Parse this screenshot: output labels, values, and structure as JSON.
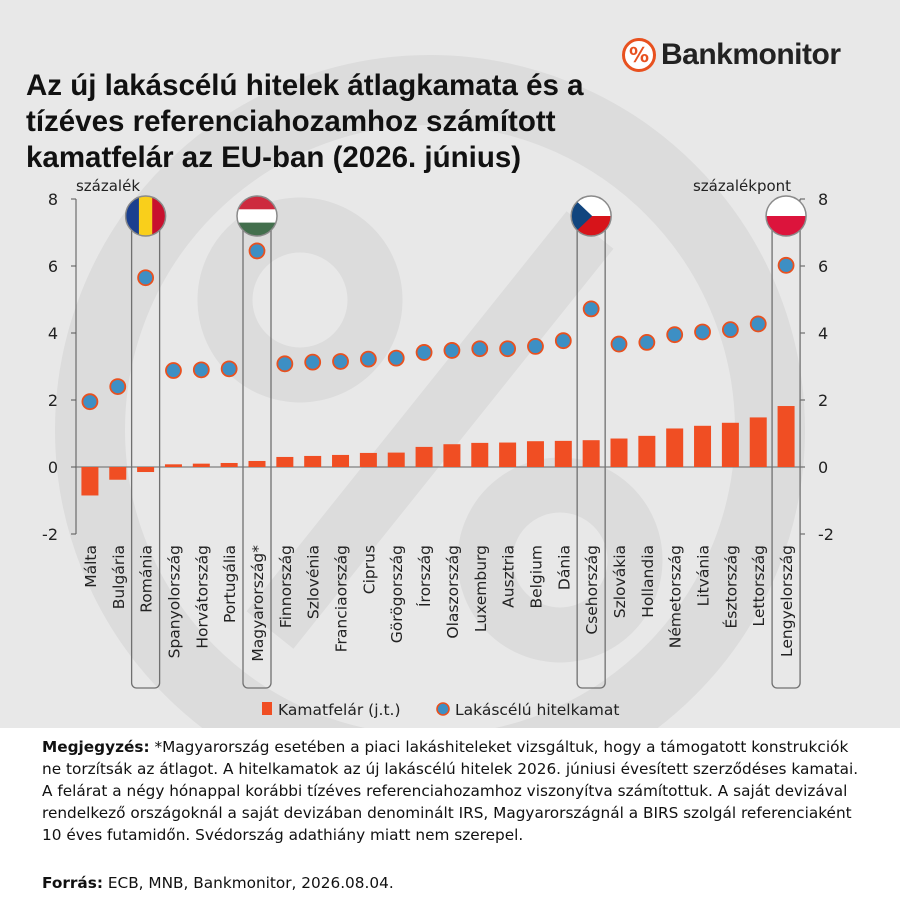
{
  "brand": {
    "symbol": "%",
    "name": "Bankmonitor"
  },
  "title_lines": [
    "Az új lakáscélú hitelek átlagkamata és a",
    "tízéves referenciahozamhoz számított",
    "kamatfelár az EU-ban (2026. június)"
  ],
  "colors": {
    "bar": "#f04e23",
    "dot": "#3d8fc4",
    "dot_border": "#e8511f",
    "background": "#e8e8e8"
  },
  "chart_data": {
    "type": "bar",
    "categories": [
      "Málta",
      "Bulgária",
      "Románia",
      "Spanyolország",
      "Horvátország",
      "Portugália",
      "Magyarország*",
      "Finnország",
      "Szlovénia",
      "Franciaország",
      "Ciprus",
      "Görögország",
      "Írország",
      "Olaszország",
      "Luxemburg",
      "Ausztria",
      "Belgium",
      "Dánia",
      "Csehország",
      "Szlovákia",
      "Hollandia",
      "Németország",
      "Litvánia",
      "Észtország",
      "Lettország",
      "Lengyelország"
    ],
    "series": [
      {
        "name": "Kamatfelár (j.t.)",
        "type": "bar",
        "axis": "right",
        "values": [
          -0.85,
          -0.38,
          -0.15,
          0.08,
          0.1,
          0.12,
          0.18,
          0.3,
          0.33,
          0.36,
          0.42,
          0.43,
          0.6,
          0.68,
          0.72,
          0.73,
          0.77,
          0.78,
          0.8,
          0.85,
          0.93,
          1.15,
          1.23,
          1.32,
          1.48,
          1.82
        ]
      },
      {
        "name": "Lakáscélú hitelkamat",
        "type": "scatter",
        "axis": "left",
        "values": [
          1.95,
          2.4,
          5.65,
          2.88,
          2.9,
          2.93,
          6.45,
          3.08,
          3.13,
          3.15,
          3.22,
          3.25,
          3.42,
          3.48,
          3.53,
          3.53,
          3.6,
          3.77,
          4.72,
          3.67,
          3.72,
          3.95,
          4.03,
          4.1,
          4.27,
          6.02
        ]
      }
    ],
    "ylabel_left": "százalék",
    "ylabel_right": "százalékpont",
    "ylim": [
      -2,
      8
    ],
    "yticks": [
      -2,
      0,
      2,
      4,
      6,
      8
    ],
    "highlighted": [
      {
        "category": "Románia",
        "flag": "romania-flag-icon"
      },
      {
        "category": "Magyarország*",
        "flag": "hungary-flag-icon"
      },
      {
        "category": "Csehország",
        "flag": "czech-flag-icon"
      },
      {
        "category": "Lengyelország",
        "flag": "poland-flag-icon"
      }
    ],
    "grid": false,
    "legend_position": "bottom-center"
  },
  "note": {
    "label": "Megjegyzés:",
    "text": " *Magyarország esetében a piaci lakáshiteleket vizsgáltuk, hogy a támogatott konstrukciók ne torzítsák az átlagot. A hitelkamatok az új lakáscélú hitelek 2026. júniusi évesített szerződéses kamatai. A felárat a négy hónappal korábbi tízéves referenciahozamhoz viszonyítva számítottuk. A saját devizával rendelkező országoknál a saját devizában denominált IRS, Magyarországnál a BIRS szolgál referenciaként 10 éves futamidőn. Svédország adathiány miatt nem szerepel."
  },
  "source": {
    "label": "Forrás:",
    "text": " ECB, MNB, Bankmonitor, 2026.08.04."
  }
}
